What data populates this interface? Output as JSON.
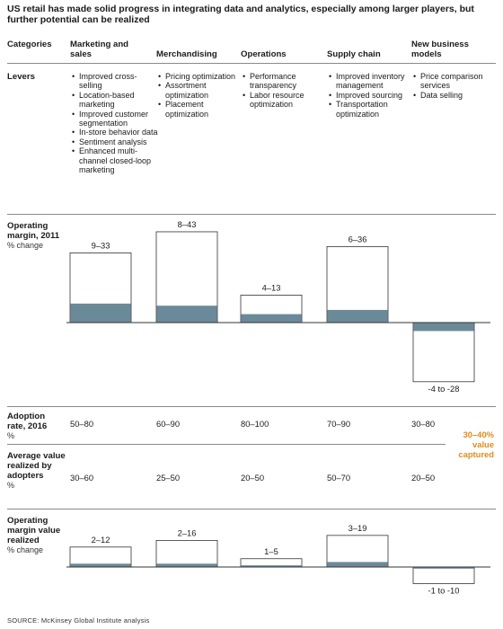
{
  "title": "US retail has made solid progress in integrating data and analytics, especially among larger players, but further potential can be realized",
  "header": {
    "categories_label": "Categories",
    "columns": [
      "Marketing and sales",
      "Merchandising",
      "Operations",
      "Supply chain",
      "New business models"
    ]
  },
  "levers": {
    "label": "Levers",
    "columns": [
      [
        "Improved cross-selling",
        "Location-based marketing",
        "Improved customer segmentation",
        "In-store behavior data",
        "Sentiment analysis",
        "Enhanced multi-channel closed-loop marketing"
      ],
      [
        "Pricing optimization",
        "Assortment optimization",
        "Placement optimization"
      ],
      [
        "Performance transparency",
        "Labor resource optimization"
      ],
      [
        "Improved inventory management",
        "Improved sourcing",
        "Transportation optimization"
      ],
      [
        "Price comparison services",
        "Data selling"
      ]
    ]
  },
  "operating_margin_2011": {
    "label": "Operating margin, 2011",
    "sublabel": "% change",
    "range_labels": [
      "9–33",
      "8–43",
      "4–13",
      "6–36",
      "-4 to -28"
    ]
  },
  "adoption_rate": {
    "label": "Adoption rate, 2016",
    "sublabel": "%",
    "values": [
      "50–80",
      "60–90",
      "80–100",
      "70–90",
      "30–80"
    ]
  },
  "average_value": {
    "label": "Average value realized by adopters",
    "sublabel": "%",
    "values": [
      "30–60",
      "25–50",
      "20–50",
      "50–70",
      "20–50"
    ]
  },
  "captured_note": "30–40% value captured",
  "operating_margin_value_realized": {
    "label": "Operating margin value realized",
    "sublabel": "% change",
    "range_labels": [
      "2–12",
      "2–16",
      "1–5",
      "3–19",
      "-1 to -10"
    ]
  },
  "source": "SOURCE: McKinsey Global Institute analysis",
  "colors": {
    "bar_fill": "#6b8a99",
    "bar_outline": "#333333",
    "accent": "#e08a1e",
    "rule": "#8a8a8a"
  },
  "chart_data": [
    {
      "type": "bar",
      "title": "Operating margin, 2011",
      "ylabel": "% change",
      "categories": [
        "Marketing and sales",
        "Merchandising",
        "Operations",
        "Supply chain",
        "New business models"
      ],
      "series": [
        {
          "name": "low",
          "values": [
            9,
            8,
            4,
            6,
            -4
          ]
        },
        {
          "name": "high",
          "values": [
            33,
            43,
            13,
            36,
            -28
          ]
        }
      ]
    },
    {
      "type": "bar",
      "title": "Operating margin value realized",
      "ylabel": "% change",
      "categories": [
        "Marketing and sales",
        "Merchandising",
        "Operations",
        "Supply chain",
        "New business models"
      ],
      "series": [
        {
          "name": "low",
          "values": [
            2,
            2,
            1,
            3,
            -1
          ]
        },
        {
          "name": "high",
          "values": [
            12,
            16,
            5,
            19,
            -10
          ]
        }
      ]
    }
  ]
}
